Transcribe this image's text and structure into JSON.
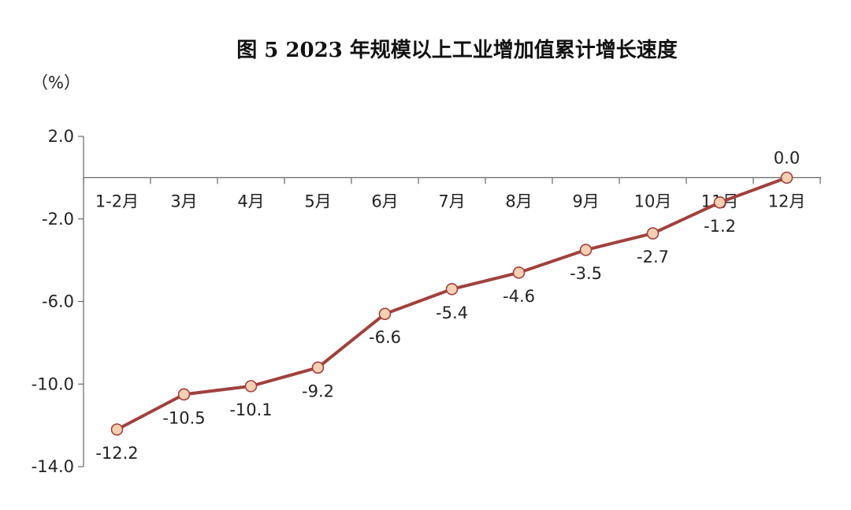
{
  "chart_data": {
    "type": "line",
    "title": "图 5   2023 年规模以上工业增加值累计增长速度",
    "unit": "（%）",
    "categories": [
      "1-2月",
      "3月",
      "4月",
      "5月",
      "6月",
      "7月",
      "8月",
      "9月",
      "10月",
      "11月",
      "12月"
    ],
    "values": [
      -12.2,
      -10.5,
      -10.1,
      -9.2,
      -6.6,
      -5.4,
      -4.6,
      -3.5,
      -2.7,
      -1.2,
      0.0
    ],
    "value_labels": [
      "-12.2",
      "-10.5",
      "-10.1",
      "-9.2",
      "-6.6",
      "-5.4",
      "-4.6",
      "-3.5",
      "-2.7",
      "-1.2",
      "0.0"
    ],
    "yticks": [
      "2.0",
      "-2.0",
      "-6.0",
      "-10.0",
      "-14.0"
    ],
    "ytick_values": [
      2.0,
      -2.0,
      -6.0,
      -10.0,
      -14.0
    ],
    "ylim": [
      -14.0,
      2.0
    ],
    "grid": false,
    "colors": {
      "line": "#a0413e",
      "marker_fill": "#f7cfb3",
      "marker_stroke": "#a0413e",
      "axis": "#666666"
    }
  }
}
